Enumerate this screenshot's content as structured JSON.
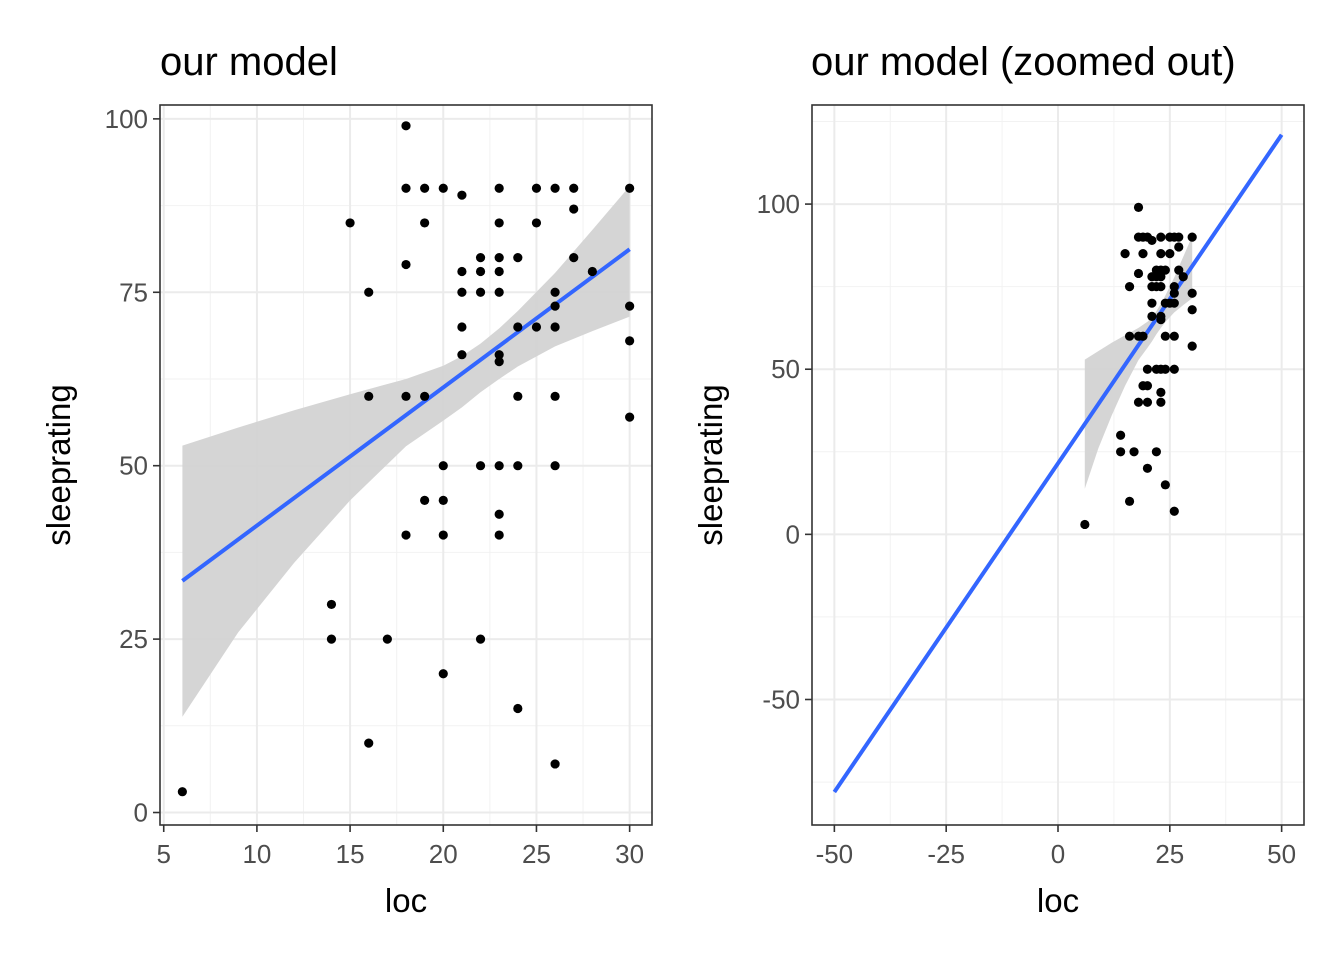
{
  "chart_data": [
    {
      "type": "scatter",
      "title": "our model",
      "xlabel": "loc",
      "ylabel": "sleeprating",
      "xlim": [
        4.8,
        31.2
      ],
      "ylim": [
        -1.8,
        102
      ],
      "xticks": [
        5,
        10,
        15,
        20,
        25,
        30
      ],
      "yticks": [
        0,
        25,
        50,
        75,
        100
      ],
      "x_tick_labels": [
        "5",
        "10",
        "15",
        "20",
        "25",
        "30"
      ],
      "y_tick_labels": [
        "0",
        "25",
        "50",
        "75",
        "100"
      ],
      "grid": true,
      "series": [
        {
          "kind": "points",
          "color": "#000000",
          "points": [
            [
              6,
              3
            ],
            [
              14,
              30
            ],
            [
              14,
              25
            ],
            [
              15,
              85
            ],
            [
              16,
              75
            ],
            [
              16,
              60
            ],
            [
              16,
              10
            ],
            [
              17,
              25
            ],
            [
              18,
              99
            ],
            [
              18,
              90
            ],
            [
              18,
              79
            ],
            [
              18,
              60
            ],
            [
              18,
              40
            ],
            [
              19,
              90
            ],
            [
              19,
              85
            ],
            [
              19,
              60
            ],
            [
              19,
              45
            ],
            [
              20,
              90
            ],
            [
              20,
              50
            ],
            [
              20,
              45
            ],
            [
              20,
              40
            ],
            [
              20,
              20
            ],
            [
              21,
              89
            ],
            [
              21,
              78
            ],
            [
              21,
              75
            ],
            [
              21,
              70
            ],
            [
              21,
              66
            ],
            [
              22,
              80
            ],
            [
              22,
              78
            ],
            [
              22,
              75
            ],
            [
              22,
              50
            ],
            [
              22,
              25
            ],
            [
              23,
              90
            ],
            [
              23,
              85
            ],
            [
              23,
              80
            ],
            [
              23,
              78
            ],
            [
              23,
              75
            ],
            [
              23,
              66
            ],
            [
              23,
              65
            ],
            [
              23,
              50
            ],
            [
              23,
              43
            ],
            [
              23,
              40
            ],
            [
              24,
              80
            ],
            [
              24,
              70
            ],
            [
              24,
              60
            ],
            [
              24,
              50
            ],
            [
              24,
              15
            ],
            [
              25,
              90
            ],
            [
              25,
              85
            ],
            [
              25,
              70
            ],
            [
              26,
              90
            ],
            [
              26,
              75
            ],
            [
              26,
              73
            ],
            [
              26,
              70
            ],
            [
              26,
              60
            ],
            [
              26,
              50
            ],
            [
              26,
              7
            ],
            [
              27,
              90
            ],
            [
              27,
              87
            ],
            [
              27,
              80
            ],
            [
              28,
              78
            ],
            [
              30,
              90
            ],
            [
              30,
              73
            ],
            [
              30,
              68
            ],
            [
              30,
              57
            ]
          ]
        },
        {
          "kind": "fit",
          "color": "#3366ff",
          "band_color": "#d3d3d3",
          "x": [
            6,
            30
          ],
          "y": [
            33.4,
            81.2
          ],
          "ci_x": [
            6,
            9,
            12,
            15,
            18,
            20,
            21,
            22,
            23,
            24,
            26,
            28,
            30
          ],
          "ci_lower": [
            13.8,
            26,
            36,
            45,
            52.8,
            56.5,
            58.4,
            60.6,
            62.5,
            64.3,
            67.2,
            69.4,
            71.5
          ],
          "ci_upper": [
            52.9,
            55.5,
            58,
            60.3,
            62.5,
            64.4,
            65.8,
            67.6,
            69.8,
            72.3,
            77.8,
            84,
            90.3
          ]
        }
      ]
    },
    {
      "type": "scatter",
      "title": "our model (zoomed out)",
      "xlabel": "loc",
      "ylabel": "sleeprating",
      "xlim": [
        -55,
        55
      ],
      "ylim": [
        -88,
        130
      ],
      "xticks": [
        -50,
        -25,
        0,
        25,
        50
      ],
      "yticks": [
        -50,
        0,
        50,
        100
      ],
      "x_tick_labels": [
        "-50",
        "-25",
        "0",
        "25",
        "50"
      ],
      "y_tick_labels": [
        "-50",
        "0",
        "50",
        "100"
      ],
      "grid": true,
      "series": [
        {
          "kind": "points",
          "color": "#000000",
          "points": [
            [
              6,
              3
            ],
            [
              14,
              30
            ],
            [
              14,
              25
            ],
            [
              15,
              85
            ],
            [
              16,
              75
            ],
            [
              16,
              60
            ],
            [
              16,
              10
            ],
            [
              17,
              25
            ],
            [
              18,
              99
            ],
            [
              18,
              90
            ],
            [
              18,
              79
            ],
            [
              18,
              60
            ],
            [
              18,
              40
            ],
            [
              19,
              90
            ],
            [
              19,
              85
            ],
            [
              19,
              60
            ],
            [
              19,
              45
            ],
            [
              20,
              90
            ],
            [
              20,
              50
            ],
            [
              20,
              45
            ],
            [
              20,
              40
            ],
            [
              20,
              20
            ],
            [
              21,
              89
            ],
            [
              21,
              78
            ],
            [
              21,
              75
            ],
            [
              21,
              70
            ],
            [
              21,
              66
            ],
            [
              22,
              80
            ],
            [
              22,
              78
            ],
            [
              22,
              75
            ],
            [
              22,
              50
            ],
            [
              22,
              25
            ],
            [
              23,
              90
            ],
            [
              23,
              85
            ],
            [
              23,
              80
            ],
            [
              23,
              78
            ],
            [
              23,
              75
            ],
            [
              23,
              66
            ],
            [
              23,
              65
            ],
            [
              23,
              50
            ],
            [
              23,
              43
            ],
            [
              23,
              40
            ],
            [
              24,
              80
            ],
            [
              24,
              70
            ],
            [
              24,
              60
            ],
            [
              24,
              50
            ],
            [
              24,
              15
            ],
            [
              25,
              90
            ],
            [
              25,
              85
            ],
            [
              25,
              70
            ],
            [
              26,
              90
            ],
            [
              26,
              75
            ],
            [
              26,
              73
            ],
            [
              26,
              70
            ],
            [
              26,
              60
            ],
            [
              26,
              50
            ],
            [
              26,
              7
            ],
            [
              27,
              90
            ],
            [
              27,
              87
            ],
            [
              27,
              80
            ],
            [
              28,
              78
            ],
            [
              30,
              90
            ],
            [
              30,
              73
            ],
            [
              30,
              68
            ],
            [
              30,
              57
            ]
          ]
        },
        {
          "kind": "fit",
          "color": "#3366ff",
          "band_color": "#d3d3d3",
          "x": [
            -50,
            50
          ],
          "y": [
            -78,
            121
          ],
          "ci_x": [
            6,
            9,
            12,
            15,
            18,
            20,
            21,
            22,
            23,
            24,
            26,
            28,
            30
          ],
          "ci_lower": [
            13.8,
            26,
            36,
            45,
            52.8,
            56.5,
            58.4,
            60.6,
            62.5,
            64.3,
            67.2,
            69.4,
            71.5
          ],
          "ci_upper": [
            52.9,
            55.5,
            58,
            60.3,
            62.5,
            64.4,
            65.8,
            67.6,
            69.8,
            72.3,
            77.8,
            84,
            90.3
          ]
        }
      ]
    }
  ]
}
